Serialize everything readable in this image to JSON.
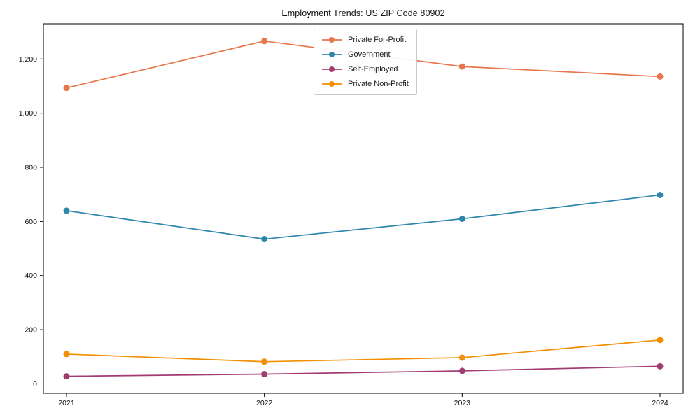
{
  "chart_data": {
    "type": "line",
    "title": "Employment Trends: US ZIP Code 80902",
    "categories": [
      "2021",
      "2022",
      "2023",
      "2024"
    ],
    "series": [
      {
        "name": "Private For-Profit",
        "color": "#E8764B",
        "values": [
          1093,
          1266,
          1172,
          1135
        ]
      },
      {
        "name": "Government",
        "color": "#2E86AB",
        "values": [
          640,
          535,
          610,
          698
        ]
      },
      {
        "name": "Self-Employed",
        "color": "#A23B72",
        "values": [
          28,
          36,
          48,
          65
        ]
      },
      {
        "name": "Private Non-Profit",
        "color": "#F18F01",
        "values": [
          110,
          82,
          97,
          162
        ]
      }
    ],
    "xlabel": "",
    "ylabel": "",
    "ylim": [
      -35,
      1330
    ],
    "yticks": [
      0,
      200,
      400,
      600,
      800,
      1000,
      1200
    ],
    "ytick_labels": [
      "0",
      "200",
      "400",
      "600",
      "800",
      "1,000",
      "1,200"
    ],
    "legend_position": "upper center",
    "grid": false,
    "axis_color": "#000000",
    "background": "#ffffff"
  }
}
